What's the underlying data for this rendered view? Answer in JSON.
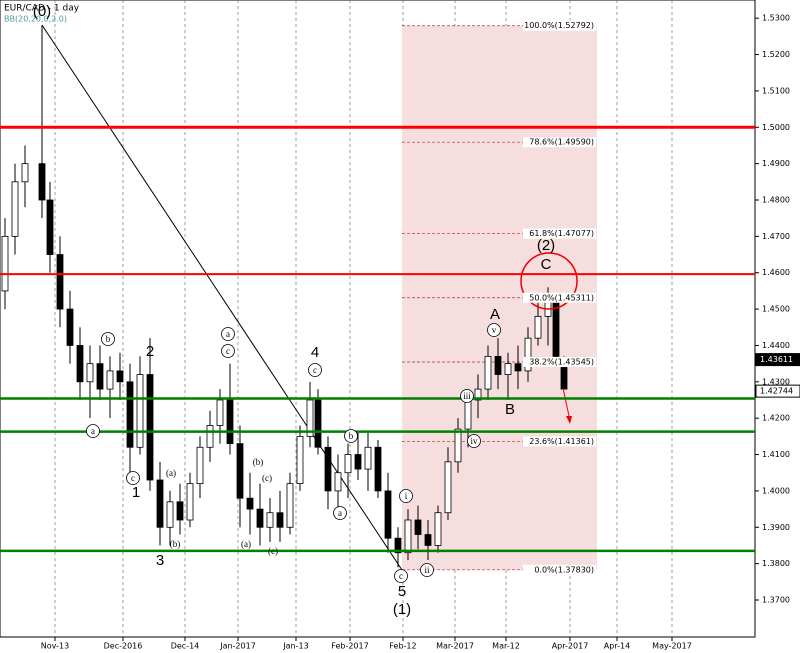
{
  "chart_data": {
    "type": "candlestick",
    "title": "EUR/CAD - 1 day",
    "subtitle": "BB(20,20,0,2.0)",
    "x": [
      1,
      3,
      5,
      8.4,
      10,
      12,
      14,
      16,
      18,
      20,
      22,
      24,
      26,
      28,
      30,
      32,
      34,
      36,
      38,
      40,
      42,
      44,
      46,
      48,
      50,
      52,
      54,
      56,
      58,
      60,
      62,
      63.6,
      65.6,
      67.6,
      69.6,
      71.6,
      73.6,
      75.6,
      77.6,
      79.6,
      81.6,
      83.6,
      85.6,
      87.6,
      89.6,
      91.6,
      93.6,
      95.6,
      97.6,
      99.6,
      101.6,
      103.6,
      105.6,
      107.6,
      109.6,
      111.2,
      112.8
    ],
    "open": [
      1.455,
      1.47,
      1.485,
      1.49,
      1.48,
      1.465,
      1.45,
      1.44,
      1.43,
      1.435,
      1.428,
      1.433,
      1.43,
      1.412,
      1.432,
      1.403,
      1.39,
      1.397,
      1.392,
      1.402,
      1.412,
      1.418,
      1.425,
      1.413,
      1.398,
      1.395,
      1.39,
      1.394,
      1.39,
      1.402,
      1.415,
      1.425,
      1.412,
      1.4,
      1.405,
      1.41,
      1.406,
      1.412,
      1.4,
      1.387,
      1.383,
      1.392,
      1.388,
      1.385,
      1.394,
      1.408,
      1.417,
      1.425,
      1.428,
      1.437,
      1.432,
      1.435,
      1.433,
      1.442,
      1.448,
      1.452,
      1.436
    ],
    "high": [
      1.475,
      1.49,
      1.495,
      1.528,
      1.485,
      1.47,
      1.455,
      1.445,
      1.44,
      1.44,
      1.437,
      1.438,
      1.435,
      1.437,
      1.442,
      1.408,
      1.4,
      1.402,
      1.405,
      1.415,
      1.422,
      1.428,
      1.435,
      1.418,
      1.405,
      1.402,
      1.398,
      1.4,
      1.405,
      1.418,
      1.43,
      1.428,
      1.415,
      1.41,
      1.413,
      1.416,
      1.416,
      1.414,
      1.405,
      1.39,
      1.395,
      1.396,
      1.392,
      1.396,
      1.412,
      1.42,
      1.428,
      1.432,
      1.44,
      1.442,
      1.438,
      1.44,
      1.445,
      1.452,
      1.456,
      1.453,
      1.437
    ],
    "low": [
      1.45,
      1.465,
      1.478,
      1.475,
      1.46,
      1.445,
      1.435,
      1.425,
      1.42,
      1.425,
      1.42,
      1.425,
      1.405,
      1.41,
      1.4,
      1.385,
      1.385,
      1.388,
      1.39,
      1.398,
      1.408,
      1.413,
      1.41,
      1.39,
      1.388,
      1.385,
      1.386,
      1.386,
      1.388,
      1.4,
      1.412,
      1.41,
      1.395,
      1.395,
      1.398,
      1.403,
      1.4,
      1.398,
      1.383,
      1.379,
      1.381,
      1.384,
      1.381,
      1.383,
      1.392,
      1.405,
      1.412,
      1.42,
      1.425,
      1.428,
      1.425,
      1.428,
      1.43,
      1.44,
      1.44,
      1.435,
      1.428
    ],
    "close": [
      1.47,
      1.485,
      1.49,
      1.48,
      1.465,
      1.45,
      1.44,
      1.43,
      1.435,
      1.428,
      1.433,
      1.43,
      1.412,
      1.432,
      1.403,
      1.39,
      1.397,
      1.392,
      1.402,
      1.412,
      1.418,
      1.425,
      1.413,
      1.398,
      1.395,
      1.39,
      1.394,
      1.39,
      1.402,
      1.415,
      1.425,
      1.412,
      1.4,
      1.405,
      1.41,
      1.406,
      1.412,
      1.4,
      1.387,
      1.383,
      1.392,
      1.388,
      1.385,
      1.394,
      1.408,
      1.417,
      1.425,
      1.428,
      1.437,
      1.432,
      1.435,
      1.433,
      1.442,
      1.448,
      1.452,
      1.437,
      1.428
    ],
    "up_color": "#ffffff",
    "down_color": "#000000",
    "xlim": [
      0,
      151
    ],
    "xticks": [
      {
        "value": 11,
        "label": "Nov-13"
      },
      {
        "value": 24.6,
        "label": "Dec-2016"
      },
      {
        "value": 37,
        "label": "Dec-14"
      },
      {
        "value": 47.6,
        "label": "Jan-2017"
      },
      {
        "value": 59.2,
        "label": "Jan-13"
      },
      {
        "value": 70,
        "label": "Feb-2017"
      },
      {
        "value": 80.6,
        "label": "Feb-12"
      },
      {
        "value": 91,
        "label": "Mar-2017"
      },
      {
        "value": 101.2,
        "label": "Mar-12"
      },
      {
        "value": 114,
        "label": "Apr-2017"
      },
      {
        "value": 123.4,
        "label": "Apr-14"
      },
      {
        "value": 134.4,
        "label": "May-2017"
      }
    ],
    "ylim": [
      1.359,
      1.535
    ],
    "yticks": [
      {
        "value": 1.37,
        "label": "1.3700"
      },
      {
        "value": 1.38,
        "label": "1.3800"
      },
      {
        "value": 1.39,
        "label": "1.3900"
      },
      {
        "value": 1.4,
        "label": "1.4000"
      },
      {
        "value": 1.41,
        "label": "1.4100"
      },
      {
        "value": 1.42,
        "label": "1.4200"
      },
      {
        "value": 1.43,
        "label": "1.4300"
      },
      {
        "value": 1.44,
        "label": "1.4400"
      },
      {
        "value": 1.45,
        "label": "1.4500"
      },
      {
        "value": 1.46,
        "label": "1.4600"
      },
      {
        "value": 1.47,
        "label": "1.4700"
      },
      {
        "value": 1.48,
        "label": "1.4800"
      },
      {
        "value": 1.49,
        "label": "1.4900"
      },
      {
        "value": 1.5,
        "label": "1.5000"
      },
      {
        "value": 1.51,
        "label": "1.5100"
      },
      {
        "value": 1.52,
        "label": "1.5200"
      },
      {
        "value": 1.53,
        "label": "1.5300"
      }
    ],
    "resistance_lines": [
      1.5,
      1.4596
    ],
    "support_lines": [
      1.4254,
      1.4163,
      1.3835
    ],
    "resistance_color": "#ff0000",
    "support_color": "#008000",
    "fibonacci": [
      {
        "value": 1.52792,
        "label": "100.0%(1.52792)"
      },
      {
        "value": 1.4959,
        "label": "78.6%(1.49590)"
      },
      {
        "value": 1.47077,
        "label": "61.8%(1.47077)"
      },
      {
        "value": 1.45311,
        "label": "50.0%(1.45311)"
      },
      {
        "value": 1.43545,
        "label": "38.2%(1.43545)"
      },
      {
        "value": 1.41361,
        "label": "23.6%(1.41361)"
      },
      {
        "value": 1.3783,
        "label": "0.0%(1.37830)"
      }
    ],
    "price_tags": [
      {
        "value": 1.43611,
        "label": "1.43611"
      },
      {
        "value": 1.42744,
        "label": "1.42744"
      }
    ],
    "wave_labels": [
      "(0)",
      "2",
      "1",
      "3",
      "4",
      "5",
      "(1)",
      "(2)",
      "C",
      "A",
      "B"
    ],
    "circled_labels": [
      "b",
      "a",
      "c",
      "a",
      "c",
      "b",
      "a",
      "c",
      "c",
      "i",
      "ii",
      "iii",
      "iv",
      "v",
      "(a)",
      "(b)",
      "(b)",
      "(c)",
      "(a)",
      "(c)"
    ]
  }
}
